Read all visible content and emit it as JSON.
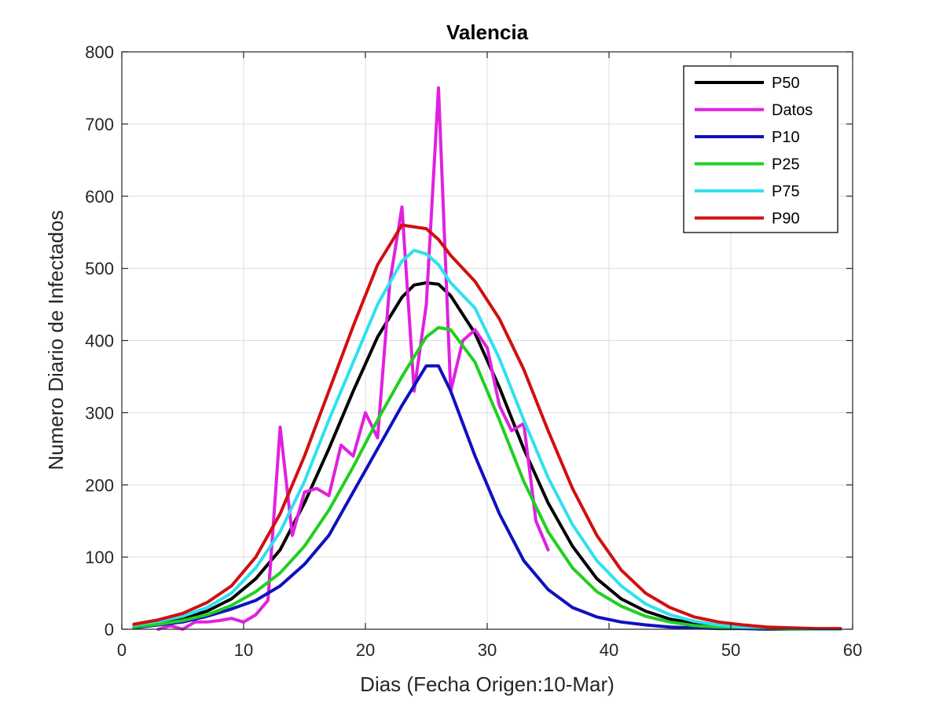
{
  "chart_data": {
    "type": "line",
    "title": "Valencia",
    "xlabel": "Dias (Fecha Origen:10-Mar)",
    "ylabel": "Numero Diario de Infectados",
    "xlim": [
      0,
      60
    ],
    "ylim": [
      0,
      800
    ],
    "xticks": [
      0,
      10,
      20,
      30,
      40,
      50,
      60
    ],
    "yticks": [
      0,
      100,
      200,
      300,
      400,
      500,
      600,
      700,
      800
    ],
    "grid": true,
    "legend_position": "top-right",
    "series": [
      {
        "name": "P50",
        "color": "#000000",
        "x": [
          1,
          3,
          5,
          7,
          9,
          11,
          13,
          15,
          17,
          19,
          21,
          23,
          24,
          25,
          26,
          27,
          29,
          31,
          33,
          35,
          37,
          39,
          41,
          43,
          45,
          47,
          49,
          51,
          53,
          55,
          57,
          59
        ],
        "y": [
          5,
          9,
          15,
          25,
          42,
          70,
          110,
          175,
          250,
          330,
          405,
          460,
          477,
          480,
          478,
          462,
          410,
          335,
          250,
          175,
          115,
          70,
          42,
          25,
          14,
          8,
          4,
          2,
          1,
          1,
          0,
          0
        ]
      },
      {
        "name": "Datos",
        "color": "#e020e0",
        "x": [
          3,
          4,
          5,
          6,
          7,
          8,
          9,
          10,
          11,
          12,
          13,
          14,
          15,
          16,
          17,
          18,
          19,
          20,
          21,
          22,
          23,
          24,
          25,
          26,
          27,
          28,
          29,
          30,
          31,
          32,
          33,
          34,
          35
        ],
        "y": [
          0,
          5,
          0,
          10,
          10,
          12,
          15,
          10,
          20,
          40,
          280,
          130,
          190,
          195,
          185,
          255,
          240,
          300,
          265,
          480,
          585,
          330,
          450,
          750,
          330,
          400,
          415,
          390,
          310,
          275,
          285,
          150,
          110
        ]
      },
      {
        "name": "P10",
        "color": "#1010c0",
        "x": [
          1,
          3,
          5,
          7,
          9,
          11,
          13,
          15,
          17,
          19,
          21,
          23,
          25,
          26,
          27,
          29,
          31,
          33,
          35,
          37,
          39,
          41,
          43,
          45,
          47,
          49,
          51,
          53,
          55,
          57,
          59
        ],
        "y": [
          2,
          6,
          10,
          18,
          28,
          40,
          60,
          90,
          130,
          190,
          250,
          310,
          365,
          365,
          330,
          240,
          160,
          95,
          55,
          30,
          17,
          10,
          6,
          3,
          2,
          1,
          1,
          0,
          0,
          0,
          0
        ]
      },
      {
        "name": "P25",
        "color": "#20d020",
        "x": [
          1,
          3,
          5,
          7,
          9,
          11,
          13,
          15,
          17,
          19,
          21,
          23,
          25,
          26,
          27,
          29,
          31,
          33,
          35,
          37,
          39,
          41,
          43,
          45,
          47,
          49,
          51,
          53,
          55,
          57,
          59
        ],
        "y": [
          3,
          7,
          12,
          20,
          33,
          52,
          78,
          115,
          165,
          225,
          290,
          350,
          405,
          418,
          415,
          370,
          290,
          205,
          135,
          85,
          52,
          32,
          18,
          10,
          5,
          3,
          2,
          1,
          0,
          0,
          0
        ]
      },
      {
        "name": "P75",
        "color": "#30e0f0",
        "x": [
          1,
          3,
          5,
          7,
          9,
          11,
          13,
          15,
          17,
          19,
          21,
          23,
          24,
          25,
          26,
          27,
          29,
          31,
          33,
          35,
          37,
          39,
          41,
          43,
          45,
          47,
          49,
          51,
          53,
          55,
          57,
          59
        ],
        "y": [
          6,
          11,
          18,
          30,
          50,
          85,
          135,
          205,
          290,
          370,
          450,
          510,
          525,
          520,
          505,
          480,
          445,
          375,
          290,
          210,
          145,
          95,
          60,
          35,
          20,
          11,
          6,
          3,
          2,
          1,
          0,
          0
        ]
      },
      {
        "name": "P90",
        "color": "#d01010",
        "x": [
          1,
          3,
          5,
          7,
          9,
          11,
          13,
          15,
          17,
          19,
          21,
          23,
          25,
          26,
          27,
          29,
          31,
          33,
          35,
          37,
          39,
          41,
          43,
          45,
          47,
          49,
          51,
          53,
          55,
          57,
          59
        ],
        "y": [
          7,
          13,
          22,
          37,
          60,
          100,
          160,
          240,
          330,
          420,
          505,
          560,
          555,
          540,
          518,
          482,
          430,
          360,
          275,
          195,
          130,
          82,
          50,
          30,
          17,
          10,
          6,
          3,
          2,
          1,
          1
        ]
      }
    ]
  }
}
